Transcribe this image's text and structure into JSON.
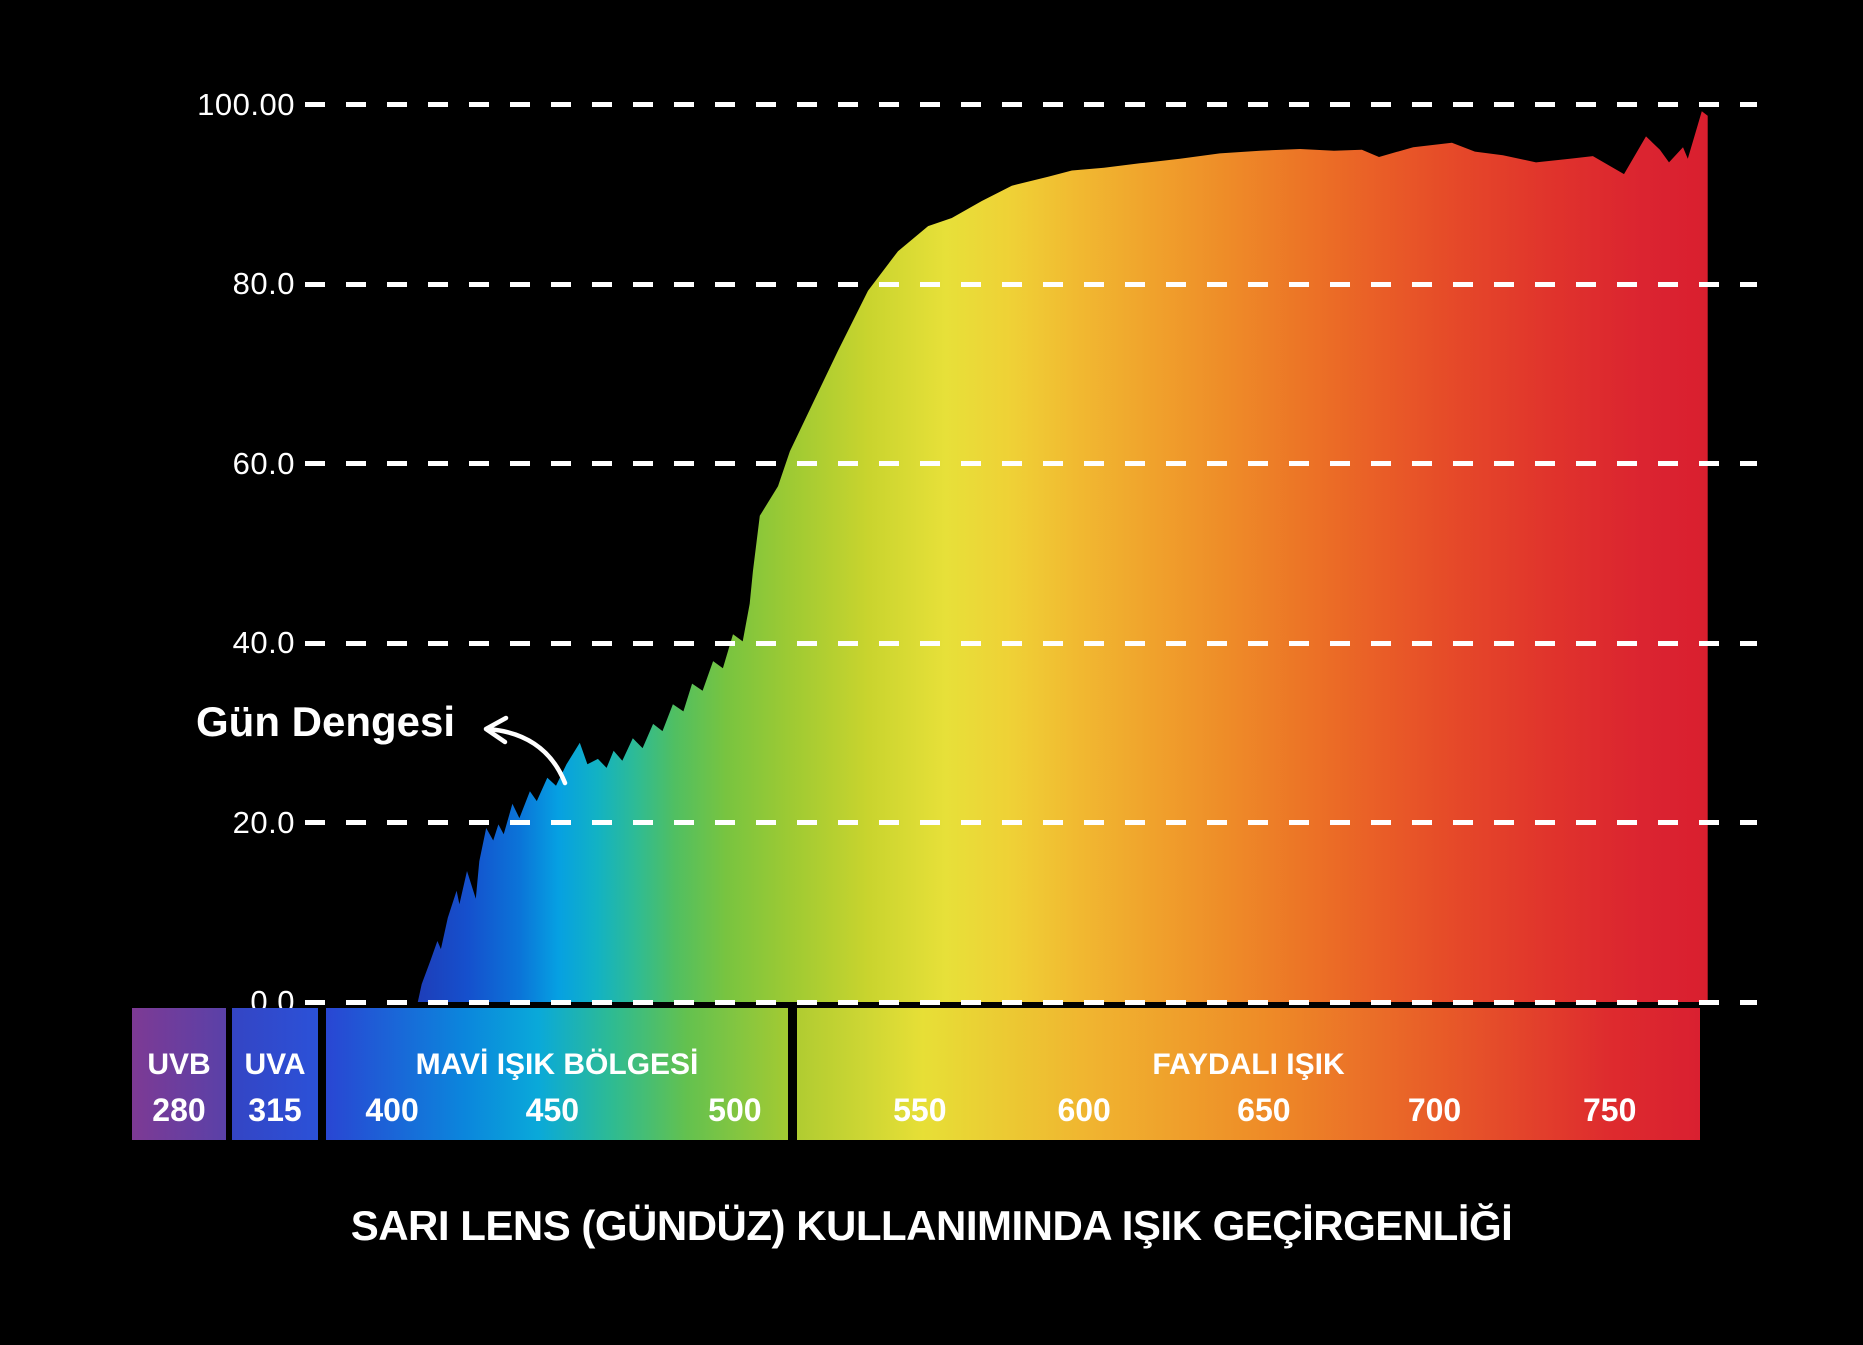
{
  "title": "SARI LENS (GÜNDÜZ) KULLANIMINDA IŞIK GEÇİRGENLİĞİ",
  "annotation": {
    "label": "Gün Dengesi"
  },
  "y_axis": {
    "ticks": [
      "100.00",
      "80.0",
      "60.0",
      "40.0",
      "20.0",
      "0.0"
    ]
  },
  "bands": [
    {
      "name": "UVB",
      "ticks": [
        "280"
      ],
      "gradient": [
        [
          0,
          "#7d3a94"
        ],
        [
          100,
          "#5a41a8"
        ]
      ]
    },
    {
      "name": "UVA",
      "ticks": [
        "315"
      ],
      "gradient": [
        [
          0,
          "#3445c4"
        ],
        [
          100,
          "#2b51d8"
        ]
      ]
    },
    {
      "name": "MAVİ IŞIK BÖLGESİ",
      "ticks": [
        "400",
        "450",
        "500"
      ],
      "gradient": [
        [
          0,
          "#2946d3"
        ],
        [
          30,
          "#0b86dc"
        ],
        [
          46,
          "#0aa9d9"
        ],
        [
          62,
          "#2ebb92"
        ],
        [
          78,
          "#63c14f"
        ],
        [
          100,
          "#a3ca32"
        ]
      ]
    },
    {
      "name": "FAYDALI IŞIK",
      "ticks": [
        "550",
        "600",
        "650",
        "700",
        "750"
      ],
      "gradient": [
        [
          0,
          "#b0cc31"
        ],
        [
          14,
          "#e7df36"
        ],
        [
          32,
          "#f0b530"
        ],
        [
          52,
          "#ee8b27"
        ],
        [
          71,
          "#e85c28"
        ],
        [
          90,
          "#de2b2e"
        ],
        [
          100,
          "#d92030"
        ]
      ]
    }
  ],
  "colors": {
    "background": "#000000",
    "grid": "#ffffff",
    "text": "#ffffff",
    "spectrum_stops": [
      [
        0,
        "#1e3db8"
      ],
      [
        4,
        "#1550cd"
      ],
      [
        8,
        "#0b74d8"
      ],
      [
        11,
        "#06a0e2"
      ],
      [
        14,
        "#12b2c4"
      ],
      [
        17,
        "#2ebb95"
      ],
      [
        20,
        "#50bf62"
      ],
      [
        24,
        "#78c440"
      ],
      [
        29,
        "#9eca33"
      ],
      [
        35,
        "#c9d42e"
      ],
      [
        41,
        "#e7e039"
      ],
      [
        46,
        "#efd136"
      ],
      [
        51,
        "#f1ba31"
      ],
      [
        57,
        "#f0a22c"
      ],
      [
        63,
        "#ee8b28"
      ],
      [
        69,
        "#ec7326"
      ],
      [
        75,
        "#e95c27"
      ],
      [
        81,
        "#e54729"
      ],
      [
        88,
        "#e0332c"
      ],
      [
        95,
        "#db2430"
      ],
      [
        100,
        "#d91f2f"
      ]
    ]
  },
  "chart_data": {
    "type": "area",
    "title": "SARI LENS (GÜNDÜZ) KULLANIMINDA IŞIK GEÇİRGENLİĞİ",
    "xlabel": "",
    "ylabel": "",
    "xlim": [
      400,
      780
    ],
    "ylim": [
      0,
      100
    ],
    "y_ticks": [
      100,
      80,
      60,
      40,
      20,
      0
    ],
    "y_tick_labels": [
      "100.00",
      "80.0",
      "60.0",
      "40.0",
      "20.0",
      "0.0"
    ],
    "x_ticks": [
      280,
      315,
      400,
      450,
      500,
      550,
      600,
      650,
      700,
      750
    ],
    "grid": "horizontal-dashed",
    "legend": "none",
    "annotation": "Gün Dengesi",
    "points": [
      [
        407.4,
        0
      ],
      [
        408.5,
        2.0
      ],
      [
        411,
        4.6
      ],
      [
        413,
        6.8
      ],
      [
        414,
        5.9
      ],
      [
        416,
        9.4
      ],
      [
        418.5,
        12.4
      ],
      [
        419.3,
        10.9
      ],
      [
        421.5,
        14.6
      ],
      [
        424,
        11.5
      ],
      [
        425,
        15.7
      ],
      [
        427,
        19.4
      ],
      [
        429,
        18.0
      ],
      [
        430.5,
        19.8
      ],
      [
        432,
        18.7
      ],
      [
        434.5,
        22.1
      ],
      [
        436.5,
        20.5
      ],
      [
        439.5,
        23.5
      ],
      [
        441.5,
        22.4
      ],
      [
        444.5,
        25.0
      ],
      [
        447,
        24.1
      ],
      [
        450,
        26.5
      ],
      [
        453.8,
        28.9
      ],
      [
        456,
        26.5
      ],
      [
        459,
        27.1
      ],
      [
        461.5,
        26.1
      ],
      [
        463.5,
        28.0
      ],
      [
        466,
        26.9
      ],
      [
        469,
        29.4
      ],
      [
        471.8,
        28.3
      ],
      [
        474.8,
        31.0
      ],
      [
        477.5,
        30.2
      ],
      [
        480.5,
        33.2
      ],
      [
        483.5,
        32.4
      ],
      [
        486,
        35.5
      ],
      [
        489,
        34.7
      ],
      [
        492,
        38.0
      ],
      [
        494.8,
        37.2
      ],
      [
        497.7,
        41.0
      ],
      [
        500.5,
        40.2
      ],
      [
        502.5,
        44.4
      ],
      [
        503.4,
        48.0
      ],
      [
        505.4,
        54.2
      ],
      [
        510.6,
        57.5
      ],
      [
        514,
        61.4
      ],
      [
        520.9,
        67.0
      ],
      [
        527.8,
        72.6
      ],
      [
        536.4,
        79.3
      ],
      [
        545,
        83.7
      ],
      [
        553.6,
        86.5
      ],
      [
        560.4,
        87.4
      ],
      [
        569,
        89.3
      ],
      [
        577.6,
        91.0
      ],
      [
        588,
        92.0
      ],
      [
        594.8,
        92.7
      ],
      [
        604,
        93.0
      ],
      [
        614.3,
        93.5
      ],
      [
        625.8,
        94.0
      ],
      [
        637.2,
        94.6
      ],
      [
        648.7,
        94.9
      ],
      [
        660.2,
        95.1
      ],
      [
        669.9,
        94.9
      ],
      [
        677.9,
        95.0
      ],
      [
        682.8,
        94.2
      ],
      [
        692.6,
        95.3
      ],
      [
        703.7,
        95.8
      ],
      [
        710.3,
        94.8
      ],
      [
        718.3,
        94.4
      ],
      [
        727.8,
        93.6
      ],
      [
        737.5,
        94.0
      ],
      [
        744.1,
        94.3
      ],
      [
        753,
        92.3
      ],
      [
        759.3,
        96.5
      ],
      [
        763.3,
        95.0
      ],
      [
        765.9,
        93.6
      ],
      [
        769.9,
        95.3
      ],
      [
        771.3,
        94.0
      ],
      [
        775.3,
        99.3
      ],
      [
        777,
        98.8
      ]
    ]
  }
}
